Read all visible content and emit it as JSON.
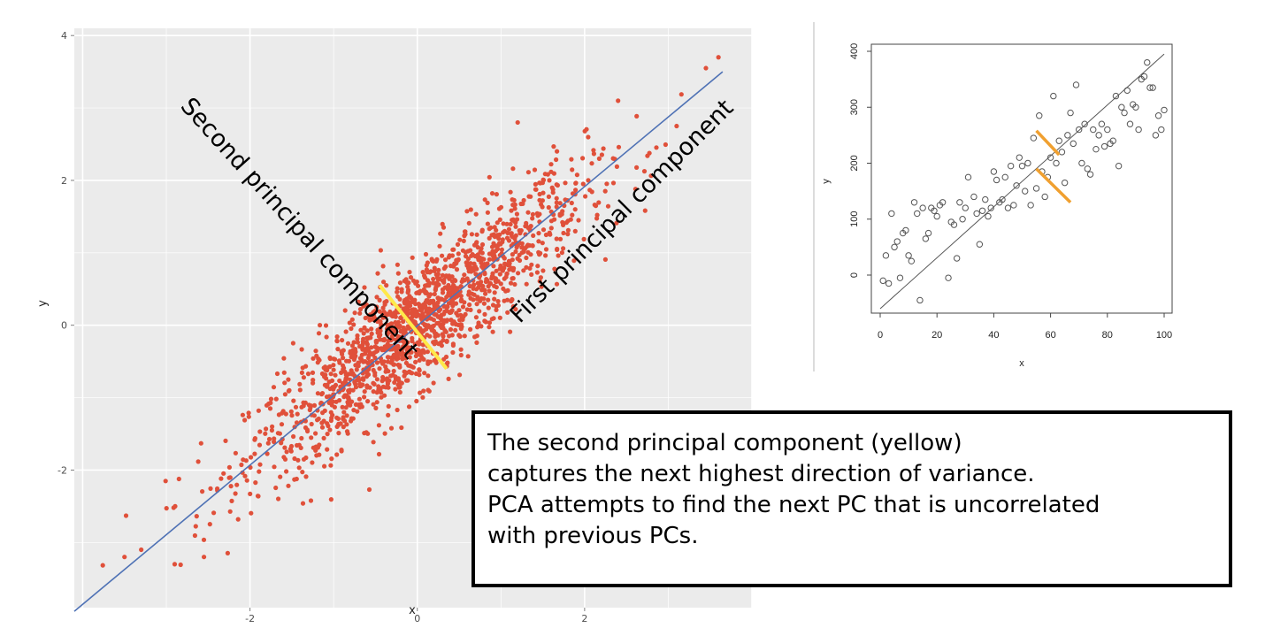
{
  "chart_data": [
    {
      "type": "scatter",
      "title": "",
      "xlabel": "x",
      "ylabel": "y",
      "xlim": [
        -4.1,
        4.0
      ],
      "ylim": [
        -3.9,
        4.1
      ],
      "x_ticks": [
        "-2",
        "0",
        "2"
      ],
      "y_ticks": [
        "-2",
        "0",
        "2",
        "4"
      ],
      "grid": true,
      "point_color": "#e0503a",
      "point_count": 1600,
      "correlation": 0.9,
      "fit_line": {
        "color": "#4f72b5",
        "from": [
          -4.1,
          -3.95
        ],
        "to": [
          3.65,
          3.5
        ]
      },
      "annotations": {
        "first_pc_label": "First principal component",
        "second_pc_label": "Second principal component"
      },
      "second_pc_segment": {
        "color": "#ffe94a",
        "from": [
          -0.45,
          0.55
        ],
        "to": [
          0.35,
          -0.6
        ]
      },
      "outliers": [
        [
          3.6,
          3.7
        ],
        [
          3.45,
          3.55
        ],
        [
          2.4,
          3.1
        ],
        [
          1.2,
          2.8
        ],
        [
          3.1,
          2.75
        ],
        [
          -3.3,
          -3.1
        ],
        [
          -3.5,
          -3.2
        ],
        [
          -2.9,
          -3.3
        ],
        [
          -2.55,
          -3.2
        ]
      ]
    },
    {
      "type": "scatter",
      "title": "",
      "xlabel": "x",
      "ylabel": "y",
      "xlim": [
        0,
        100
      ],
      "ylim": [
        -50,
        400
      ],
      "x_ticks": [
        "0",
        "20",
        "40",
        "60",
        "80",
        "100"
      ],
      "y_ticks": [
        "0",
        "100",
        "200",
        "300",
        "400"
      ],
      "grid": false,
      "marker": "open-circle",
      "fit_line": {
        "color": "#555555",
        "from": [
          0,
          -60
        ],
        "to": [
          100,
          395
        ]
      },
      "residual_segments": [
        {
          "color": "#f0a030",
          "from": [
            55,
            258
          ],
          "to": [
            63,
            215
          ]
        },
        {
          "color": "#f0a030",
          "from": [
            55,
            190
          ],
          "to": [
            67,
            130
          ]
        }
      ],
      "points": [
        [
          1,
          -10
        ],
        [
          2,
          35
        ],
        [
          3,
          -15
        ],
        [
          4,
          110
        ],
        [
          5,
          50
        ],
        [
          6,
          60
        ],
        [
          7,
          -5
        ],
        [
          8,
          75
        ],
        [
          9,
          80
        ],
        [
          10,
          35
        ],
        [
          11,
          25
        ],
        [
          12,
          130
        ],
        [
          13,
          110
        ],
        [
          14,
          -45
        ],
        [
          15,
          120
        ],
        [
          16,
          65
        ],
        [
          17,
          75
        ],
        [
          18,
          120
        ],
        [
          19,
          115
        ],
        [
          20,
          105
        ],
        [
          21,
          125
        ],
        [
          22,
          130
        ],
        [
          24,
          -5
        ],
        [
          25,
          95
        ],
        [
          26,
          90
        ],
        [
          27,
          30
        ],
        [
          28,
          130
        ],
        [
          29,
          100
        ],
        [
          30,
          120
        ],
        [
          31,
          175
        ],
        [
          33,
          140
        ],
        [
          34,
          110
        ],
        [
          35,
          55
        ],
        [
          36,
          115
        ],
        [
          37,
          135
        ],
        [
          38,
          105
        ],
        [
          39,
          120
        ],
        [
          40,
          185
        ],
        [
          41,
          170
        ],
        [
          42,
          130
        ],
        [
          43,
          135
        ],
        [
          44,
          175
        ],
        [
          45,
          120
        ],
        [
          46,
          195
        ],
        [
          47,
          125
        ],
        [
          48,
          160
        ],
        [
          49,
          210
        ],
        [
          50,
          195
        ],
        [
          51,
          150
        ],
        [
          52,
          200
        ],
        [
          53,
          125
        ],
        [
          54,
          245
        ],
        [
          55,
          155
        ],
        [
          56,
          285
        ],
        [
          57,
          185
        ],
        [
          58,
          140
        ],
        [
          59,
          175
        ],
        [
          60,
          210
        ],
        [
          61,
          320
        ],
        [
          62,
          200
        ],
        [
          63,
          240
        ],
        [
          64,
          220
        ],
        [
          65,
          165
        ],
        [
          66,
          250
        ],
        [
          67,
          290
        ],
        [
          68,
          235
        ],
        [
          69,
          340
        ],
        [
          70,
          260
        ],
        [
          71,
          200
        ],
        [
          72,
          270
        ],
        [
          73,
          190
        ],
        [
          74,
          180
        ],
        [
          75,
          260
        ],
        [
          76,
          225
        ],
        [
          77,
          250
        ],
        [
          78,
          270
        ],
        [
          79,
          230
        ],
        [
          80,
          260
        ],
        [
          81,
          235
        ],
        [
          82,
          240
        ],
        [
          83,
          320
        ],
        [
          84,
          195
        ],
        [
          85,
          300
        ],
        [
          86,
          290
        ],
        [
          87,
          330
        ],
        [
          88,
          270
        ],
        [
          89,
          305
        ],
        [
          90,
          300
        ],
        [
          91,
          260
        ],
        [
          92,
          350
        ],
        [
          93,
          355
        ],
        [
          94,
          380
        ],
        [
          95,
          335
        ],
        [
          96,
          335
        ],
        [
          97,
          250
        ],
        [
          98,
          285
        ],
        [
          99,
          260
        ],
        [
          100,
          295
        ]
      ]
    }
  ],
  "caption": {
    "lines": [
      "The second principal component (yellow)",
      "captures the next highest direction of variance.",
      "PCA attempts to find the next PC that is uncorrelated",
      "with previous PCs."
    ]
  }
}
